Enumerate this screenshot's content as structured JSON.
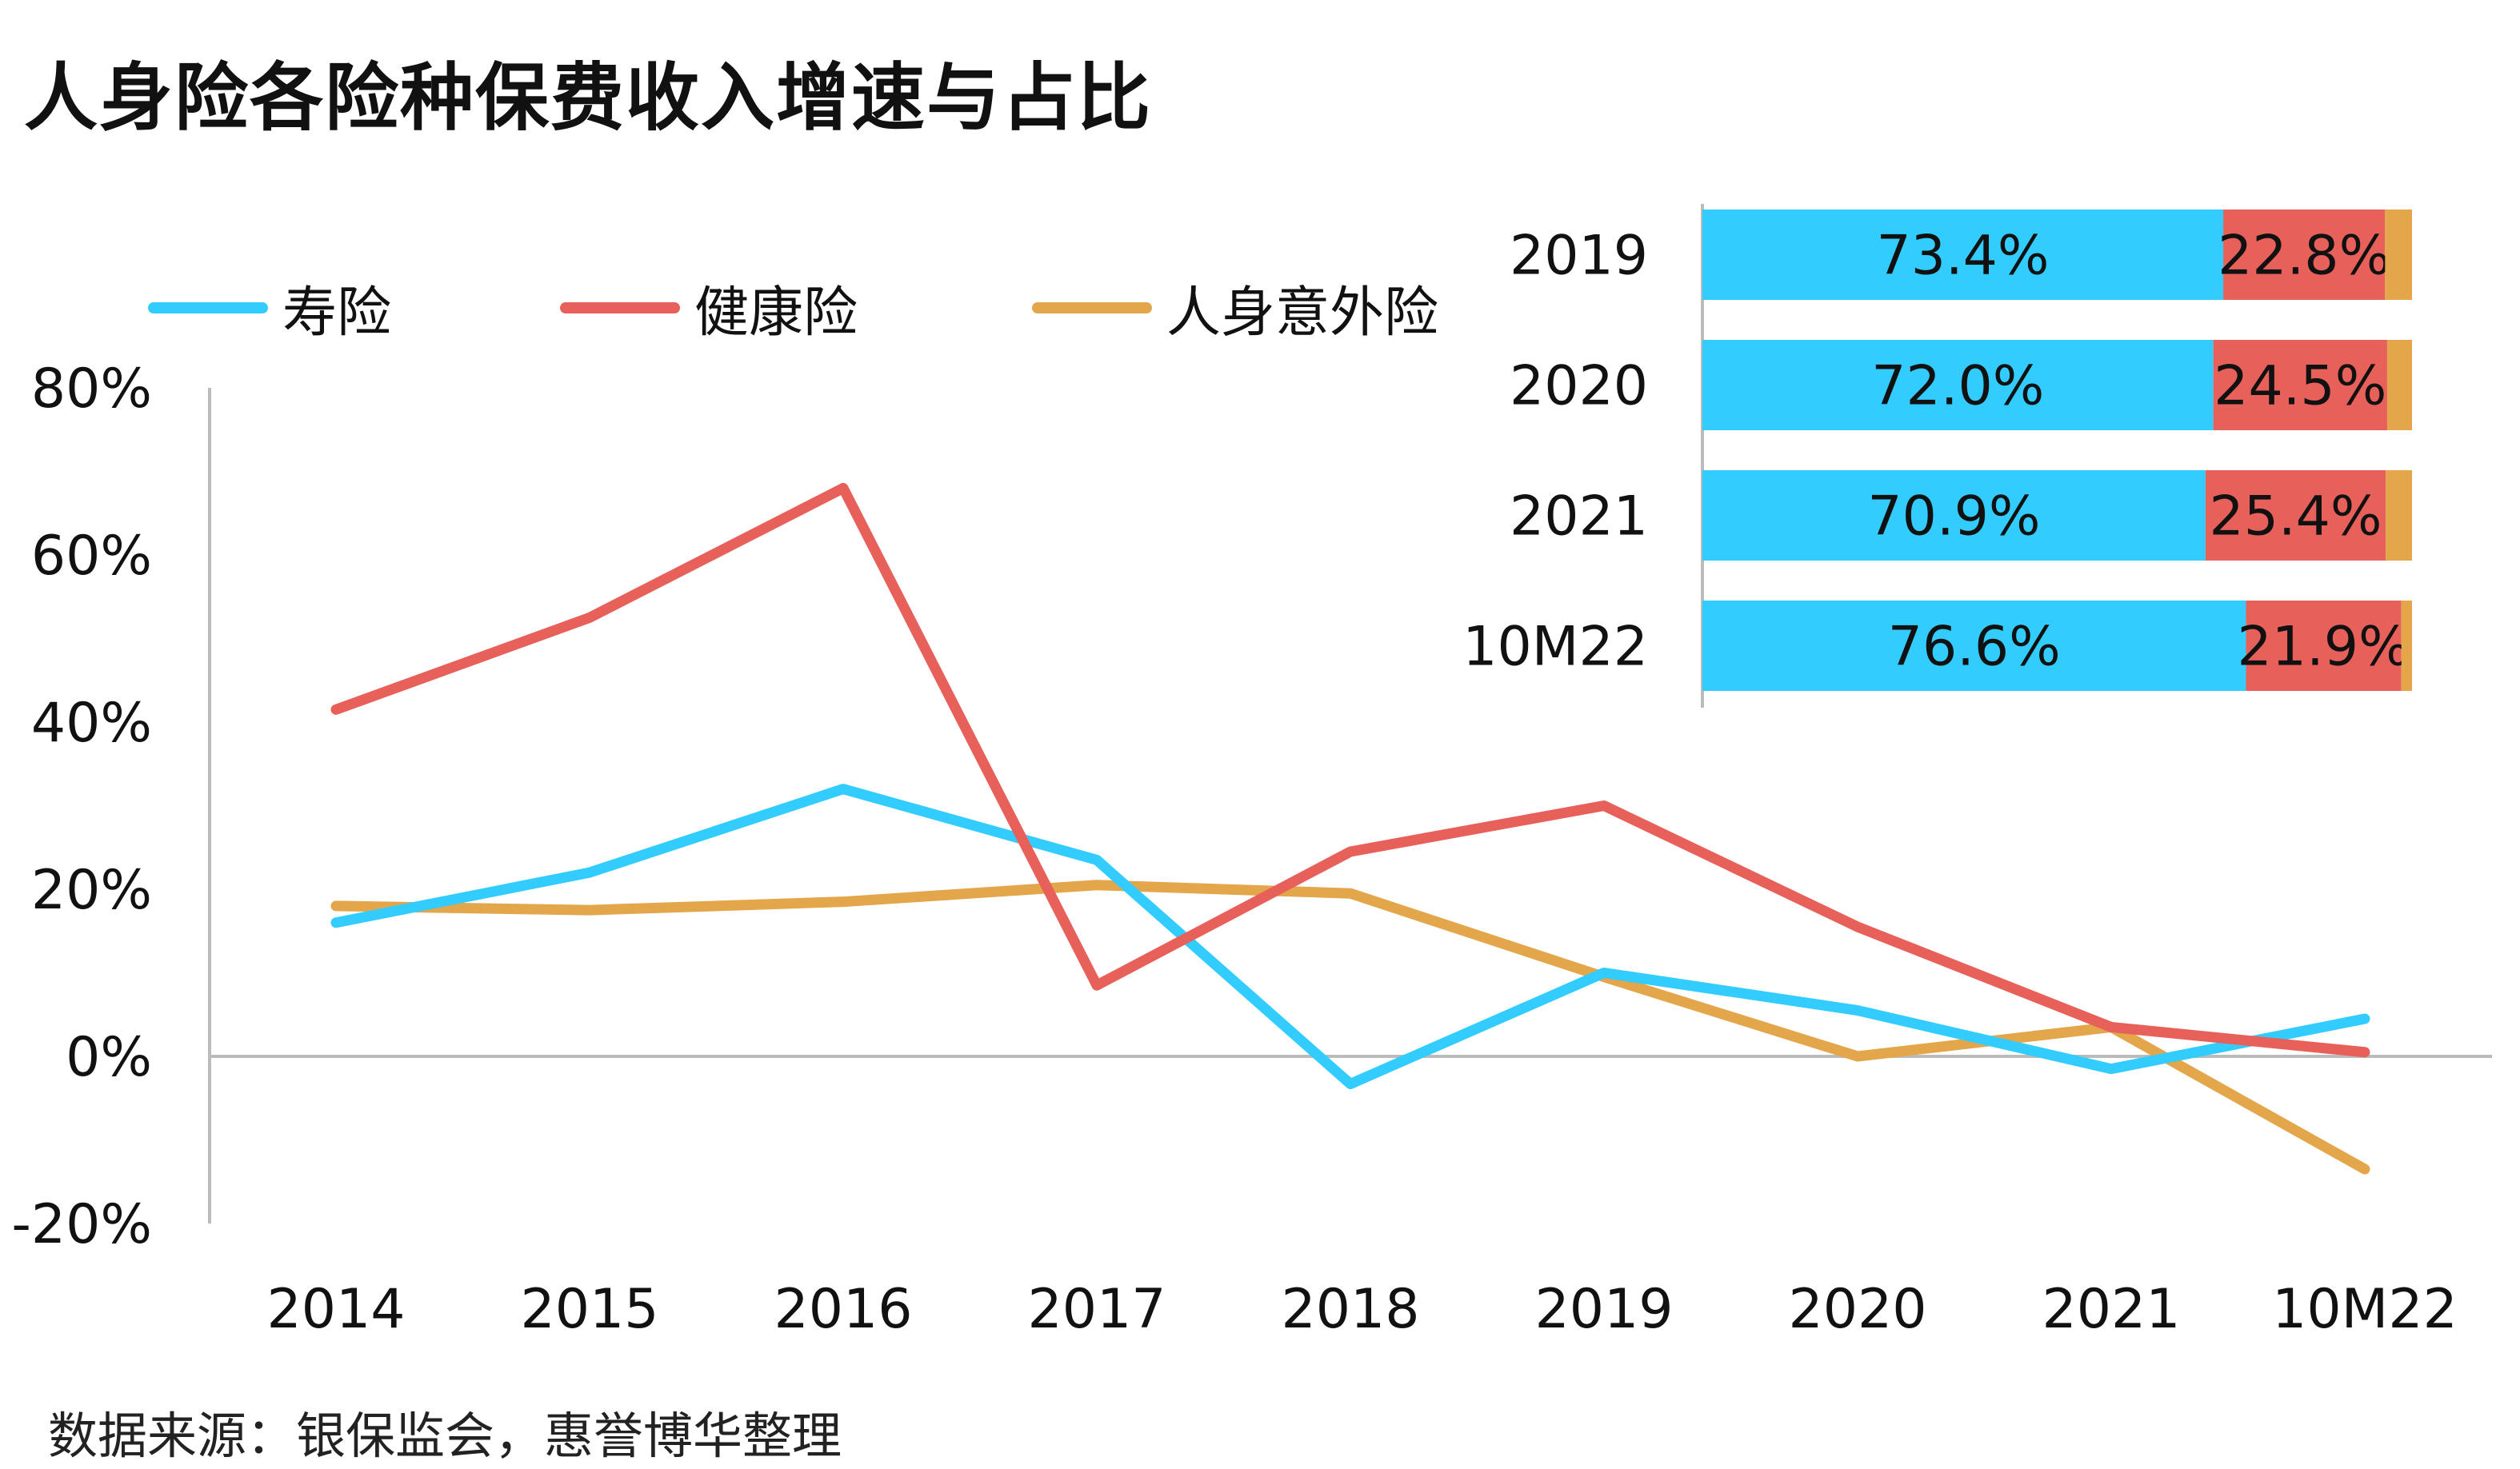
{
  "title": "人身险各险种保费收入增速与占比",
  "source": "数据来源：银保监会，惠誉博华整理",
  "colors": {
    "life": "#33CCFF",
    "health": "#E8605A",
    "accident": "#E3A64A",
    "axis": "#BBBBBB"
  },
  "chart_data": [
    {
      "type": "line",
      "categories": [
        "2014",
        "2015",
        "2016",
        "2017",
        "2018",
        "2019",
        "2020",
        "2021",
        "10M22"
      ],
      "ylim": [
        -20,
        80
      ],
      "yticks": [
        80,
        60,
        40,
        20,
        0,
        -20
      ],
      "ytick_labels": [
        "80%",
        "60%",
        "40%",
        "20%",
        "0%",
        "-20%"
      ],
      "legend_position": "top",
      "series": [
        {
          "name": "寿险",
          "color": "#33CCFF",
          "values": [
            16,
            22,
            32,
            23.5,
            -3.3,
            10,
            5.5,
            -1.5,
            4.5
          ]
        },
        {
          "name": "健康险",
          "color": "#E8605A",
          "values": [
            41.5,
            52.5,
            68,
            8.5,
            24.5,
            30,
            15.5,
            3.5,
            0.5
          ]
        },
        {
          "name": "人身意外险",
          "color": "#E3A64A",
          "values": [
            18,
            17.5,
            18.5,
            20.5,
            19.5,
            9.5,
            0,
            3.5,
            -13.5
          ]
        }
      ]
    },
    {
      "type": "bar",
      "orientation": "horizontal",
      "stacked": true,
      "normalized": true,
      "categories": [
        "2019",
        "2020",
        "2021",
        "10M22"
      ],
      "series": [
        {
          "name": "寿险",
          "color": "#33CCFF",
          "values": [
            73.4,
            72.0,
            70.9,
            76.6
          ],
          "labels": [
            "73.4%",
            "72.0%",
            "70.9%",
            "76.6%"
          ]
        },
        {
          "name": "健康险",
          "color": "#E8605A",
          "values": [
            22.8,
            24.5,
            25.4,
            21.9
          ],
          "labels": [
            "22.8%",
            "24.5%",
            "25.4%",
            "21.9%"
          ]
        },
        {
          "name": "人身意外险",
          "color": "#E3A64A",
          "values": [
            3.8,
            3.5,
            3.7,
            1.5
          ]
        }
      ]
    }
  ]
}
